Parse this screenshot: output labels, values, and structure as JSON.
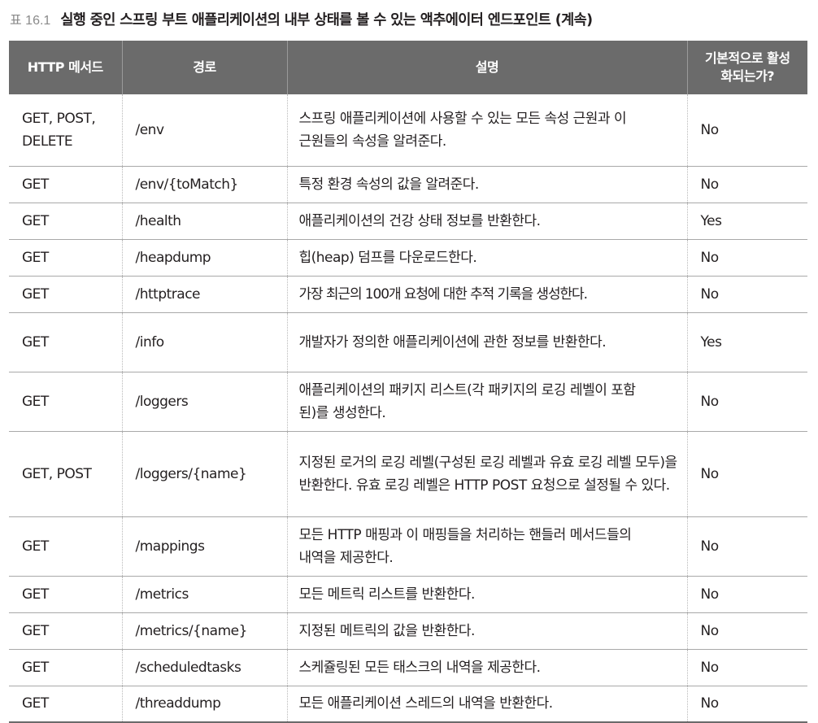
{
  "caption": {
    "number": "표 16.1",
    "title": "실행 중인 스프링 부트 애플리케이션의 내부 상태를 볼 수 있는 액추에이터 엔드포인트 (계속)"
  },
  "table": {
    "headers": [
      "HTTP 메서드",
      "경로",
      "설명",
      "기본적으로 활성화되는가?"
    ],
    "rows": [
      {
        "method": "GET, POST, DELETE",
        "path": "/env",
        "description": "스프링 애플리케이션에 사용할 수 있는 모든 속성 근원과 이 근원들의 속성을 알려준다.",
        "enabled": "No"
      },
      {
        "method": "GET",
        "path": "/env/{toMatch}",
        "description": "특정 환경 속성의 값을 알려준다.",
        "enabled": "No"
      },
      {
        "method": "GET",
        "path": "/health",
        "description": "애플리케이션의 건강 상태 정보를 반환한다.",
        "enabled": "Yes"
      },
      {
        "method": "GET",
        "path": "/heapdump",
        "description": "힙(heap) 덤프를 다운로드한다.",
        "enabled": "No"
      },
      {
        "method": "GET",
        "path": "/httptrace",
        "description": "가장 최근의 100개 요청에 대한 추적 기록을 생성한다.",
        "enabled": "No"
      },
      {
        "method": "GET",
        "path": "/info",
        "description": "개발자가 정의한 애플리케이션에 관한 정보를 반환한다.",
        "enabled": "Yes"
      },
      {
        "method": "GET",
        "path": "/loggers",
        "description": "애플리케이션의 패키지 리스트(각 패키지의 로깅 레벨이 포함된)를 생성한다.",
        "enabled": "No"
      },
      {
        "method": "GET, POST",
        "path": "/loggers/{name}",
        "description": "지정된 로거의 로깅 레벨(구성된 로깅 레벨과 유효 로깅 레벨 모두)을 반환한다. 유효 로깅 레벨은 HTTP POST 요청으로 설정될 수 있다.",
        "enabled": "No"
      },
      {
        "method": "GET",
        "path": "/mappings",
        "description": "모든 HTTP 매핑과 이 매핑들을 처리하는 핸들러 메서드들의 내역을 제공한다.",
        "enabled": "No"
      },
      {
        "method": "GET",
        "path": "/metrics",
        "description": "모든 메트릭 리스트를 반환한다.",
        "enabled": "No"
      },
      {
        "method": "GET",
        "path": "/metrics/{name}",
        "description": "지정된 메트릭의 값을 반환한다.",
        "enabled": "No"
      },
      {
        "method": "GET",
        "path": "/scheduledtasks",
        "description": "스케쥴링된 모든 태스크의 내역을 제공한다.",
        "enabled": "No"
      },
      {
        "method": "GET",
        "path": "/threaddump",
        "description": "모든 애플리케이션 스레드의 내역을 반환한다.",
        "enabled": "No"
      }
    ]
  }
}
